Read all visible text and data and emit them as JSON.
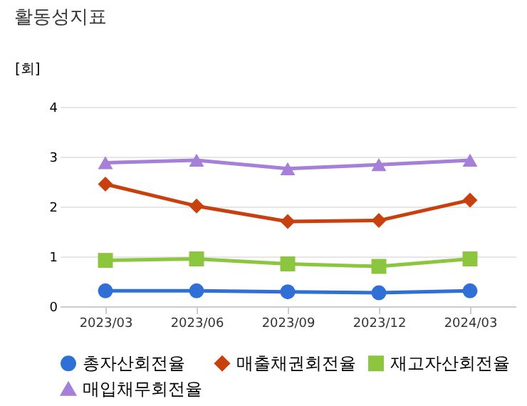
{
  "chart_data": {
    "type": "line",
    "title": "활동성지표",
    "ylabel": "[회]",
    "categories": [
      "2023/03",
      "2023/06",
      "2023/09",
      "2023/12",
      "2024/03"
    ],
    "series": [
      {
        "name": "총자산회전율",
        "color": "#2f6fd6",
        "marker": "circle",
        "values": [
          0.31,
          0.31,
          0.29,
          0.27,
          0.31
        ]
      },
      {
        "name": "매출채권회전율",
        "color": "#c9400f",
        "marker": "diamond",
        "values": [
          2.45,
          2.01,
          1.7,
          1.72,
          2.13
        ]
      },
      {
        "name": "재고자산회전율",
        "color": "#8cc63f",
        "marker": "square",
        "values": [
          0.92,
          0.95,
          0.85,
          0.8,
          0.95
        ]
      },
      {
        "name": "매입채무회전율",
        "color": "#a57fd8",
        "marker": "triangle",
        "values": [
          2.88,
          2.93,
          2.76,
          2.84,
          2.93
        ]
      }
    ],
    "ylim": [
      0,
      4
    ],
    "yticks": [
      0,
      1,
      2,
      3,
      4
    ],
    "grid": "y",
    "legend": "bottom"
  }
}
